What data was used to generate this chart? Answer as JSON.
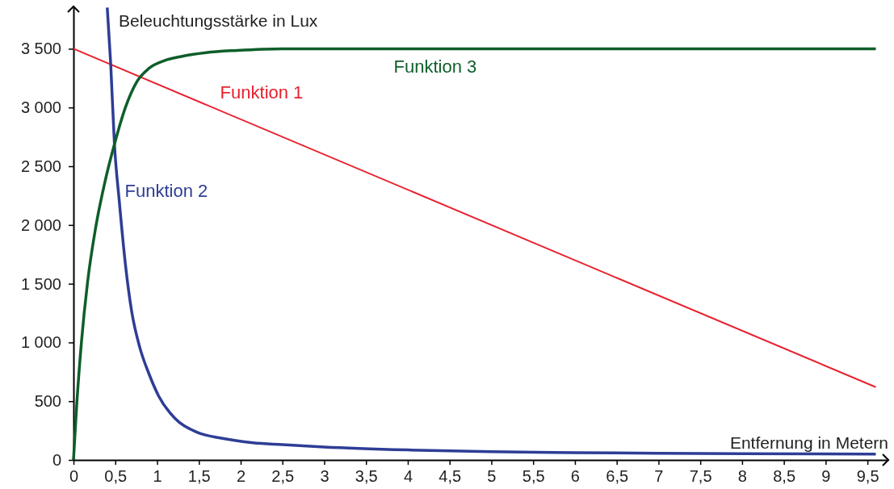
{
  "chart_data": {
    "type": "line",
    "xlabel": "Entfernung in Metern",
    "ylabel": "Beleuchtungsstärke in Lux",
    "xlim": [
      0,
      9.75
    ],
    "ylim": [
      0,
      3860
    ],
    "xticks": [
      0,
      {
        "value": 0.5,
        "label": "0,5"
      },
      1,
      {
        "value": 1.5,
        "label": "1,5"
      },
      2,
      {
        "value": 2.5,
        "label": "2,5"
      },
      3,
      {
        "value": 3.5,
        "label": "3,5"
      },
      4,
      {
        "value": 4.5,
        "label": "4,5"
      },
      5,
      {
        "value": 5.5,
        "label": "5,5"
      },
      6,
      {
        "value": 6.5,
        "label": "6,5"
      },
      7,
      {
        "value": 7.5,
        "label": "7,5"
      },
      8,
      {
        "value": 8.5,
        "label": "8,5"
      },
      9,
      {
        "value": 9.5,
        "label": "9,5"
      }
    ],
    "yticks": [
      0,
      500,
      {
        "value": 1000,
        "label": "1 000"
      },
      {
        "value": 1500,
        "label": "1 500"
      },
      {
        "value": 2000,
        "label": "2 000"
      },
      {
        "value": 2500,
        "label": "2 500"
      },
      {
        "value": 3000,
        "label": "3 000"
      },
      {
        "value": 3500,
        "label": "3 500"
      }
    ],
    "grid": false,
    "marker": "none",
    "line_style": "solid",
    "series": [
      {
        "name": "Funktion 1",
        "color": "#e8212e",
        "x": [
          0,
          9.6
        ],
        "values": [
          3500,
          620
        ]
      },
      {
        "name": "Funktion 2",
        "color": "#2e3d95",
        "x": [
          0.404,
          0.445,
          0.49,
          0.547,
          0.623,
          0.698,
          0.79,
          0.906,
          1.02,
          1.21,
          1.47,
          1.77,
          2.15,
          2.5,
          3,
          4,
          5,
          6,
          7,
          8,
          9.6
        ],
        "values": [
          3850,
          3375,
          2687,
          2210,
          1654,
          1257,
          966,
          728,
          543,
          357,
          238,
          185,
          146,
          130,
          110,
          85,
          70,
          62,
          57,
          53,
          50
        ]
      },
      {
        "name": "Funktion 3",
        "color": "#0e5e2a",
        "x": [
          0,
          0.038,
          0.094,
          0.17,
          0.264,
          0.377,
          0.49,
          0.623,
          0.755,
          0.906,
          1.094,
          1.28,
          1.585,
          1.96,
          2.5,
          9.6
        ],
        "values": [
          0,
          463,
          993,
          1522,
          1972,
          2369,
          2687,
          3004,
          3216,
          3335,
          3401,
          3433,
          3467,
          3486,
          3500,
          3500
        ]
      }
    ]
  }
}
